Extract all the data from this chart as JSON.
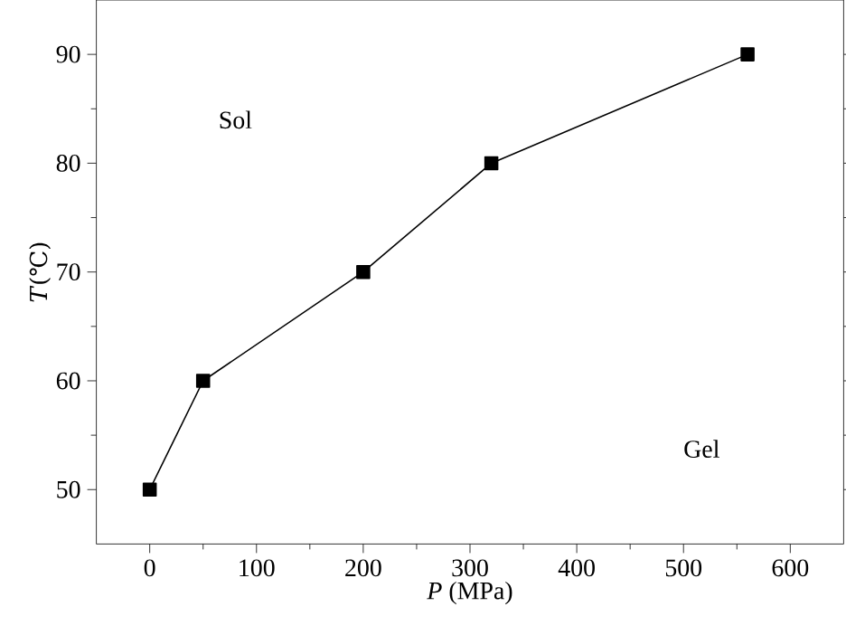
{
  "chart_data": {
    "type": "line",
    "xlabel": "*P* (MPa)",
    "ylabel": "*T*(℃)",
    "x": [
      0,
      50,
      200,
      320,
      560
    ],
    "series": [
      {
        "color": "#000000",
        "values": [
          50,
          60,
          70,
          80,
          90
        ]
      }
    ],
    "xlim": [
      -50,
      650
    ],
    "ylim": [
      45,
      95
    ],
    "xticks": [
      0,
      100,
      200,
      300,
      400,
      500,
      600
    ],
    "yticks": [
      50,
      60,
      70,
      80,
      90
    ],
    "marker": "square",
    "line_style": "solid",
    "grid": false,
    "annotations": [
      "Sol",
      "Gel"
    ]
  }
}
